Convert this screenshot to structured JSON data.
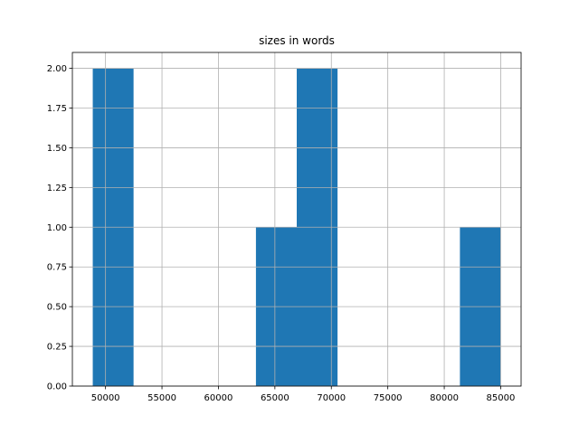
{
  "chart_data": {
    "type": "histogram",
    "title": "sizes in words",
    "bins": [
      48870,
      52483,
      56096,
      59709,
      63322,
      66935,
      70548,
      74161,
      77774,
      81387,
      85000
    ],
    "counts": [
      2,
      0,
      0,
      0,
      1,
      2,
      0,
      0,
      0,
      1
    ],
    "color": "#1f77b4",
    "xlim": [
      47064,
      86806
    ],
    "xticks": [
      50000,
      55000,
      60000,
      65000,
      70000,
      75000,
      80000,
      85000
    ],
    "ylim": [
      0,
      2.1
    ],
    "yticks": [
      {
        "value": 0,
        "label": "0.00"
      },
      {
        "value": 0.25,
        "label": "0.25"
      },
      {
        "value": 0.5,
        "label": "0.50"
      },
      {
        "value": 0.75,
        "label": "0.75"
      },
      {
        "value": 1,
        "label": "1.00"
      },
      {
        "value": 1.25,
        "label": "1.25"
      },
      {
        "value": 1.5,
        "label": "1.50"
      },
      {
        "value": 1.75,
        "label": "1.75"
      },
      {
        "value": 2,
        "label": "2.00"
      }
    ],
    "grid": true
  }
}
